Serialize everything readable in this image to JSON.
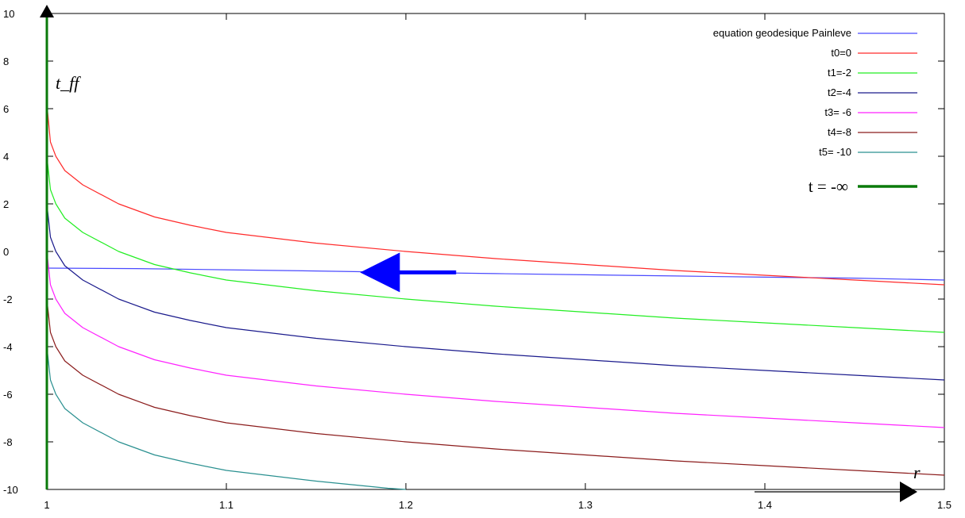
{
  "chart_data": {
    "type": "line",
    "title": "",
    "xlabel": "r",
    "ylabel": "t_ff",
    "xlim": [
      1,
      1.5
    ],
    "ylim": [
      -10,
      10
    ],
    "x_ticks": [
      "1",
      "1.1",
      "1.2",
      "1.3",
      "1.4",
      "1.5"
    ],
    "y_ticks": [
      "10",
      "8",
      "6",
      "4",
      "2",
      "0",
      "-2",
      "-4",
      "-6",
      "-8",
      "-10"
    ],
    "grid": false,
    "legend_position": "top-right",
    "series": [
      {
        "name": "equation geodesique Painleve",
        "color": "#4a4aff",
        "points": [
          [
            1.0,
            -0.7
          ],
          [
            1.05,
            -0.72
          ],
          [
            1.1,
            -0.77
          ],
          [
            1.15,
            -0.82
          ],
          [
            1.2,
            -0.88
          ],
          [
            1.25,
            -0.93
          ],
          [
            1.3,
            -0.98
          ],
          [
            1.35,
            -1.03
          ],
          [
            1.4,
            -1.08
          ],
          [
            1.45,
            -1.12
          ],
          [
            1.5,
            -1.2
          ]
        ]
      },
      {
        "name": "t0=0",
        "color": "#ff2a2a",
        "points": [
          [
            1.0,
            6.2
          ],
          [
            1.002,
            4.6
          ],
          [
            1.005,
            4.0
          ],
          [
            1.01,
            3.4
          ],
          [
            1.02,
            2.8
          ],
          [
            1.04,
            2.0
          ],
          [
            1.06,
            1.45
          ],
          [
            1.08,
            1.1
          ],
          [
            1.1,
            0.8
          ],
          [
            1.15,
            0.35
          ],
          [
            1.2,
            0.0
          ],
          [
            1.25,
            -0.3
          ],
          [
            1.3,
            -0.55
          ],
          [
            1.35,
            -0.8
          ],
          [
            1.4,
            -1.0
          ],
          [
            1.45,
            -1.2
          ],
          [
            1.5,
            -1.4
          ]
        ]
      },
      {
        "name": "t1=-2",
        "color": "#22ee22",
        "points": [
          [
            1.0,
            4.0
          ],
          [
            1.002,
            2.6
          ],
          [
            1.005,
            2.0
          ],
          [
            1.01,
            1.4
          ],
          [
            1.02,
            0.8
          ],
          [
            1.04,
            0.0
          ],
          [
            1.06,
            -0.55
          ],
          [
            1.08,
            -0.9
          ],
          [
            1.1,
            -1.2
          ],
          [
            1.15,
            -1.65
          ],
          [
            1.2,
            -2.0
          ],
          [
            1.25,
            -2.3
          ],
          [
            1.3,
            -2.55
          ],
          [
            1.35,
            -2.8
          ],
          [
            1.4,
            -3.0
          ],
          [
            1.45,
            -3.2
          ],
          [
            1.5,
            -3.4
          ]
        ]
      },
      {
        "name": "t2=-4",
        "color": "#1a1a8c",
        "points": [
          [
            1.0,
            2.0
          ],
          [
            1.002,
            0.6
          ],
          [
            1.005,
            0.0
          ],
          [
            1.01,
            -0.6
          ],
          [
            1.02,
            -1.2
          ],
          [
            1.04,
            -2.0
          ],
          [
            1.06,
            -2.55
          ],
          [
            1.08,
            -2.9
          ],
          [
            1.1,
            -3.2
          ],
          [
            1.15,
            -3.65
          ],
          [
            1.2,
            -4.0
          ],
          [
            1.25,
            -4.3
          ],
          [
            1.3,
            -4.55
          ],
          [
            1.35,
            -4.8
          ],
          [
            1.4,
            -5.0
          ],
          [
            1.45,
            -5.2
          ],
          [
            1.5,
            -5.4
          ]
        ]
      },
      {
        "name": "t3= -6",
        "color": "#ff22ff",
        "points": [
          [
            1.0,
            0.0
          ],
          [
            1.002,
            -1.4
          ],
          [
            1.005,
            -2.0
          ],
          [
            1.01,
            -2.6
          ],
          [
            1.02,
            -3.2
          ],
          [
            1.04,
            -4.0
          ],
          [
            1.06,
            -4.55
          ],
          [
            1.08,
            -4.9
          ],
          [
            1.1,
            -5.2
          ],
          [
            1.15,
            -5.65
          ],
          [
            1.2,
            -6.0
          ],
          [
            1.25,
            -6.3
          ],
          [
            1.3,
            -6.55
          ],
          [
            1.35,
            -6.8
          ],
          [
            1.4,
            -7.0
          ],
          [
            1.45,
            -7.2
          ],
          [
            1.5,
            -7.4
          ]
        ]
      },
      {
        "name": "t4=-8",
        "color": "#8b1c1c",
        "points": [
          [
            1.0,
            -2.0
          ],
          [
            1.002,
            -3.4
          ],
          [
            1.005,
            -4.0
          ],
          [
            1.01,
            -4.6
          ],
          [
            1.02,
            -5.2
          ],
          [
            1.04,
            -6.0
          ],
          [
            1.06,
            -6.55
          ],
          [
            1.08,
            -6.9
          ],
          [
            1.1,
            -7.2
          ],
          [
            1.15,
            -7.65
          ],
          [
            1.2,
            -8.0
          ],
          [
            1.25,
            -8.3
          ],
          [
            1.3,
            -8.55
          ],
          [
            1.35,
            -8.8
          ],
          [
            1.4,
            -9.0
          ],
          [
            1.45,
            -9.2
          ],
          [
            1.5,
            -9.4
          ]
        ]
      },
      {
        "name": "t5= -10",
        "color": "#2a9090",
        "points": [
          [
            1.0,
            -4.0
          ],
          [
            1.002,
            -5.4
          ],
          [
            1.005,
            -6.0
          ],
          [
            1.01,
            -6.6
          ],
          [
            1.02,
            -7.2
          ],
          [
            1.04,
            -8.0
          ],
          [
            1.06,
            -8.55
          ],
          [
            1.08,
            -8.9
          ],
          [
            1.1,
            -9.2
          ],
          [
            1.15,
            -9.65
          ],
          [
            1.19,
            -9.95
          ],
          [
            1.2,
            -10.0
          ]
        ]
      },
      {
        "name": "t = -∞",
        "color": "#0a7a0a",
        "width": 3,
        "points": [
          [
            1.0,
            -10
          ],
          [
            1.0,
            10
          ]
        ]
      }
    ],
    "annotations": [
      {
        "type": "arrow",
        "color": "#0000ff",
        "from": [
          1.228,
          -0.88
        ],
        "to": [
          1.19,
          -0.88
        ]
      }
    ]
  }
}
